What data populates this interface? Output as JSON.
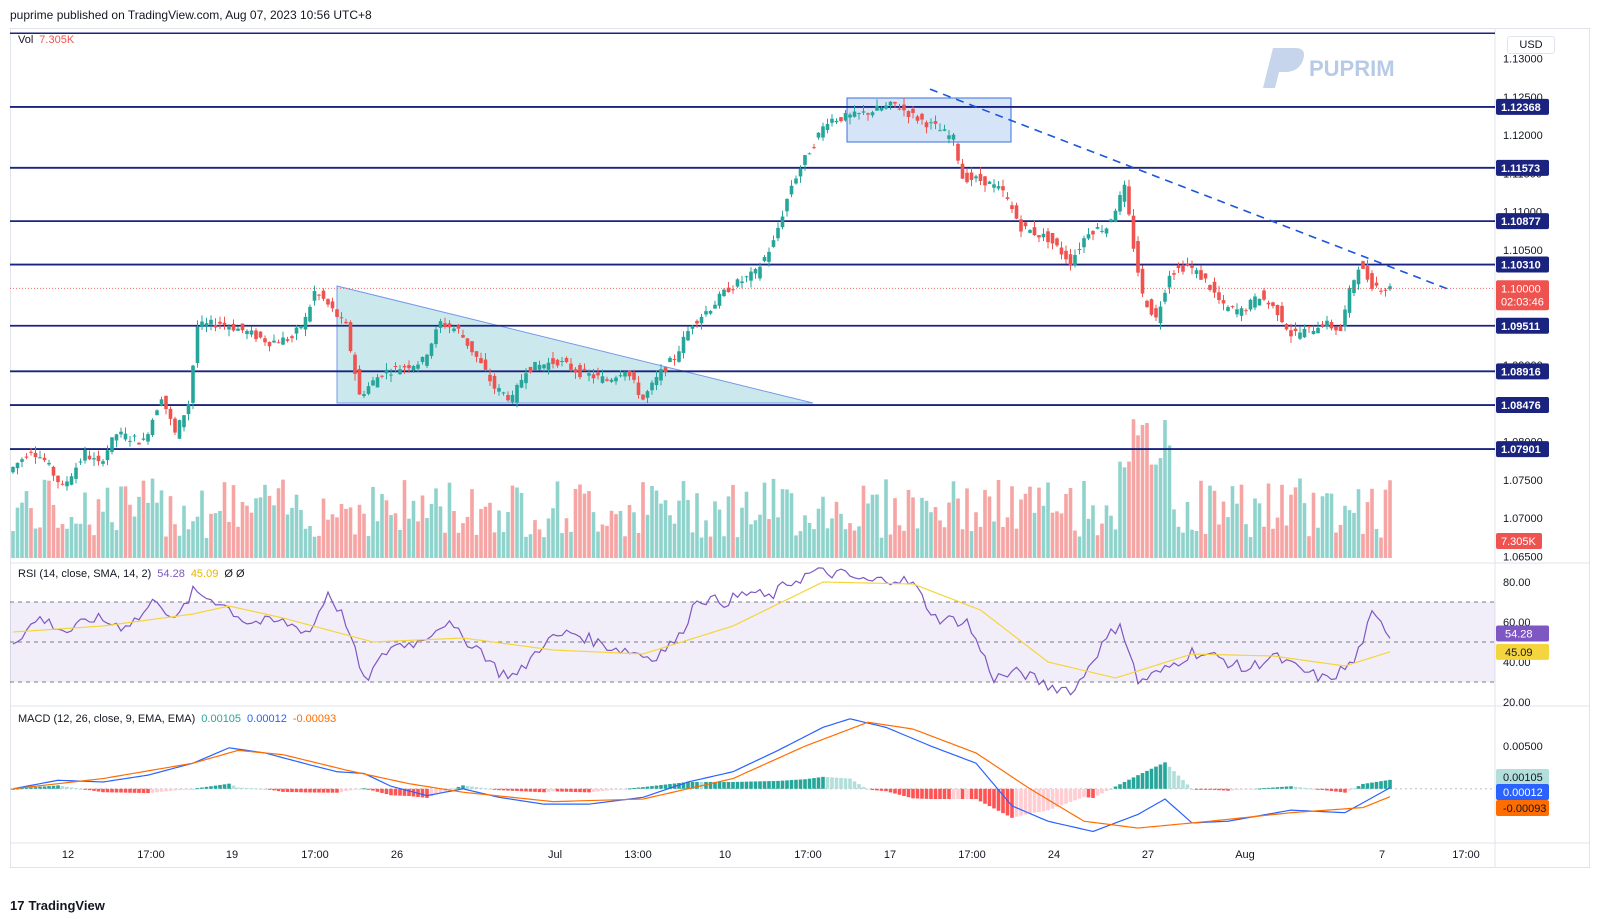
{
  "header": {
    "publish_line": "puprime published on TradingView.com, Aug 07, 2023 10:56 UTC+8"
  },
  "brand": {
    "name": "PUPRIME"
  },
  "currency": "USD",
  "volume_legend": {
    "label": "Vol",
    "value": "7.305K"
  },
  "rsi_legend": {
    "label": "RSI (14, close, SMA, 14, 2)",
    "v1": "54.28",
    "v2": "45.09",
    "v3": "Ø Ø"
  },
  "macd_legend": {
    "label": "MACD (12, 26, close, 9, EMA, EMA)",
    "hist": "0.00105",
    "macd": "0.00012",
    "signal": "-0.00093"
  },
  "footer": {
    "brand": "TradingView"
  },
  "colors": {
    "up": "#26a69a",
    "down": "#ef5350",
    "vol_up": "#8fd3cc",
    "vol_down": "#f5a5a3",
    "level": "#1a237e",
    "trend": "#1a56db",
    "rsi": "#7e57c2",
    "rsi_ma": "#f5d53d",
    "macd": "#2962ff",
    "signal": "#ff6d00"
  },
  "chart_data": [
    {
      "type": "candlestick",
      "title": "",
      "price_axis_ticks": [
        "1.13000",
        "1.12500",
        "1.12000",
        "1.11500",
        "1.11000",
        "1.10500",
        "1.10000",
        "1.09500",
        "1.09000",
        "1.08500",
        "1.08000",
        "1.07500",
        "1.07000",
        "1.06500"
      ],
      "ylim": [
        1.06453,
        1.13333
      ],
      "x_axis_ticks": [
        "12",
        "17:00",
        "19",
        "17:00",
        "26",
        "Jul",
        "13:00",
        "10",
        "17:00",
        "17",
        "17:00",
        "24",
        "27",
        "Aug",
        "7",
        "17:00"
      ],
      "horizontal_levels": [
        "1.12368",
        "1.11573",
        "1.10877",
        "1.10310",
        "1.09511",
        "1.08916",
        "1.08476",
        "1.07901"
      ],
      "top_line": 1.1333,
      "current_price": {
        "value": "1.10000",
        "countdown": "02:03:46"
      },
      "volume_label": "7.305K",
      "anchors": [
        [
          0,
          1.076
        ],
        [
          5,
          1.079
        ],
        [
          8,
          1.0775
        ],
        [
          12,
          1.074
        ],
        [
          17,
          1.0785
        ],
        [
          20,
          1.077
        ],
        [
          24,
          1.081
        ],
        [
          30,
          1.08
        ],
        [
          34,
          1.086
        ],
        [
          37,
          1.081
        ],
        [
          40,
          1.085
        ],
        [
          42,
          1.095
        ],
        [
          47,
          1.0955
        ],
        [
          52,
          1.0945
        ],
        [
          58,
          1.093
        ],
        [
          63,
          1.0935
        ],
        [
          66,
          1.096
        ],
        [
          68,
          1.0995
        ],
        [
          70,
          1.0985
        ],
        [
          75,
          1.095
        ],
        [
          78,
          1.086
        ],
        [
          83,
          1.089
        ],
        [
          92,
          1.0905
        ],
        [
          96,
          1.0955
        ],
        [
          100,
          1.0945
        ],
        [
          104,
          1.091
        ],
        [
          108,
          1.087
        ],
        [
          112,
          1.0855
        ],
        [
          115,
          1.0895
        ],
        [
          122,
          1.0905
        ],
        [
          127,
          1.089
        ],
        [
          133,
          1.088
        ],
        [
          137,
          1.0895
        ],
        [
          141,
          1.0855
        ],
        [
          145,
          1.089
        ],
        [
          148,
          1.091
        ],
        [
          152,
          1.0955
        ],
        [
          156,
          1.0975
        ],
        [
          160,
          1.1
        ],
        [
          166,
          1.102
        ],
        [
          170,
          1.106
        ],
        [
          174,
          1.1135
        ],
        [
          178,
          1.118
        ],
        [
          182,
          1.122
        ],
        [
          188,
          1.1225
        ],
        [
          194,
          1.1235
        ],
        [
          197,
          1.124
        ],
        [
          201,
          1.1225
        ],
        [
          206,
          1.121
        ],
        [
          210,
          1.1195
        ],
        [
          212,
          1.1145
        ],
        [
          217,
          1.114
        ],
        [
          221,
          1.1125
        ],
        [
          225,
          1.108
        ],
        [
          231,
          1.1065
        ],
        [
          236,
          1.1035
        ],
        [
          240,
          1.1075
        ],
        [
          244,
          1.108
        ],
        [
          246,
          1.1105
        ],
        [
          248,
          1.113
        ],
        [
          250,
          1.1055
        ],
        [
          252,
          1.099
        ],
        [
          255,
          1.096
        ],
        [
          258,
          1.102
        ],
        [
          262,
          1.103
        ],
        [
          266,
          1.101
        ],
        [
          270,
          1.0975
        ],
        [
          274,
          1.097
        ],
        [
          278,
          1.099
        ],
        [
          282,
          1.097
        ],
        [
          285,
          1.094
        ],
        [
          289,
          1.0945
        ],
        [
          292,
          1.0955
        ],
        [
          296,
          1.0945
        ],
        [
          298,
          1.0995
        ],
        [
          300,
          1.103
        ],
        [
          303,
          1.1005
        ],
        [
          306,
          1.1
        ]
      ],
      "rsi": {
        "axis_ticks": [
          "80.00",
          "60.00",
          "40.00",
          "20.00"
        ],
        "ylim": [
          19,
          86
        ],
        "bands": [
          70,
          50,
          30
        ],
        "rsi_anchors": [
          [
            0,
            50
          ],
          [
            6,
            62
          ],
          [
            12,
            55
          ],
          [
            18,
            62
          ],
          [
            24,
            58
          ],
          [
            28,
            62
          ],
          [
            32,
            72
          ],
          [
            36,
            60
          ],
          [
            40,
            75
          ],
          [
            46,
            70
          ],
          [
            52,
            60
          ],
          [
            60,
            60
          ],
          [
            66,
            55
          ],
          [
            70,
            75
          ],
          [
            74,
            60
          ],
          [
            78,
            30
          ],
          [
            84,
            48
          ],
          [
            90,
            50
          ],
          [
            96,
            60
          ],
          [
            100,
            52
          ],
          [
            104,
            46
          ],
          [
            108,
            35
          ],
          [
            112,
            33
          ],
          [
            118,
            50
          ],
          [
            124,
            55
          ],
          [
            132,
            48
          ],
          [
            138,
            45
          ],
          [
            142,
            42
          ],
          [
            148,
            52
          ],
          [
            152,
            72
          ],
          [
            158,
            70
          ],
          [
            164,
            75
          ],
          [
            168,
            72
          ],
          [
            172,
            79
          ],
          [
            178,
            85
          ],
          [
            184,
            84
          ],
          [
            190,
            80
          ],
          [
            196,
            82
          ],
          [
            200,
            79
          ],
          [
            205,
            62
          ],
          [
            212,
            60
          ],
          [
            218,
            32
          ],
          [
            224,
            35
          ],
          [
            230,
            28
          ],
          [
            236,
            26
          ],
          [
            240,
            42
          ],
          [
            246,
            60
          ],
          [
            250,
            30
          ],
          [
            256,
            36
          ],
          [
            262,
            45
          ],
          [
            268,
            42
          ],
          [
            274,
            36
          ],
          [
            280,
            43
          ],
          [
            286,
            36
          ],
          [
            292,
            31
          ],
          [
            298,
            40
          ],
          [
            302,
            63
          ],
          [
            306,
            54.28
          ]
        ],
        "ma_anchors": [
          [
            0,
            55
          ],
          [
            20,
            58
          ],
          [
            40,
            64
          ],
          [
            48,
            68
          ],
          [
            60,
            62
          ],
          [
            80,
            50
          ],
          [
            100,
            52
          ],
          [
            120,
            46
          ],
          [
            140,
            44
          ],
          [
            160,
            58
          ],
          [
            180,
            80
          ],
          [
            200,
            79
          ],
          [
            215,
            66
          ],
          [
            230,
            40
          ],
          [
            245,
            32
          ],
          [
            262,
            44
          ],
          [
            280,
            43
          ],
          [
            296,
            38
          ],
          [
            306,
            45.09
          ]
        ]
      },
      "macd": {
        "axis_ticks": [
          "0.00500",
          "0"
        ],
        "ylim": [
          -0.006,
          0.009
        ],
        "macd_anchors": [
          [
            0,
            0.0
          ],
          [
            10,
            0.001
          ],
          [
            20,
            0.0008
          ],
          [
            30,
            0.0016
          ],
          [
            40,
            0.003
          ],
          [
            48,
            0.0048
          ],
          [
            56,
            0.0042
          ],
          [
            66,
            0.0028
          ],
          [
            72,
            0.002
          ],
          [
            78,
            0.0018
          ],
          [
            84,
            0.0003
          ],
          [
            92,
            -0.0008
          ],
          [
            100,
            0.0
          ],
          [
            108,
            -0.001
          ],
          [
            118,
            -0.0018
          ],
          [
            128,
            -0.0018
          ],
          [
            140,
            -0.001
          ],
          [
            150,
            0.0008
          ],
          [
            160,
            0.002
          ],
          [
            170,
            0.0045
          ],
          [
            180,
            0.0072
          ],
          [
            186,
            0.0082
          ],
          [
            194,
            0.0072
          ],
          [
            204,
            0.005
          ],
          [
            214,
            0.003
          ],
          [
            222,
            -0.002
          ],
          [
            230,
            -0.0038
          ],
          [
            240,
            -0.005
          ],
          [
            250,
            -0.003
          ],
          [
            256,
            -0.0012
          ],
          [
            262,
            -0.004
          ],
          [
            270,
            -0.0038
          ],
          [
            284,
            -0.0025
          ],
          [
            296,
            -0.0028
          ],
          [
            306,
            0.00012
          ]
        ],
        "signal_anchors": [
          [
            0,
            0.0
          ],
          [
            20,
            0.0012
          ],
          [
            40,
            0.003
          ],
          [
            50,
            0.0045
          ],
          [
            60,
            0.004
          ],
          [
            74,
            0.0022
          ],
          [
            88,
            0.0006
          ],
          [
            100,
            -0.0004
          ],
          [
            120,
            -0.0015
          ],
          [
            140,
            -0.0012
          ],
          [
            160,
            0.0012
          ],
          [
            176,
            0.005
          ],
          [
            190,
            0.0078
          ],
          [
            200,
            0.007
          ],
          [
            214,
            0.0042
          ],
          [
            226,
            0.0
          ],
          [
            238,
            -0.0038
          ],
          [
            250,
            -0.0046
          ],
          [
            266,
            -0.0038
          ],
          [
            284,
            -0.0028
          ],
          [
            300,
            -0.0022
          ],
          [
            306,
            -0.00093
          ]
        ]
      }
    }
  ]
}
